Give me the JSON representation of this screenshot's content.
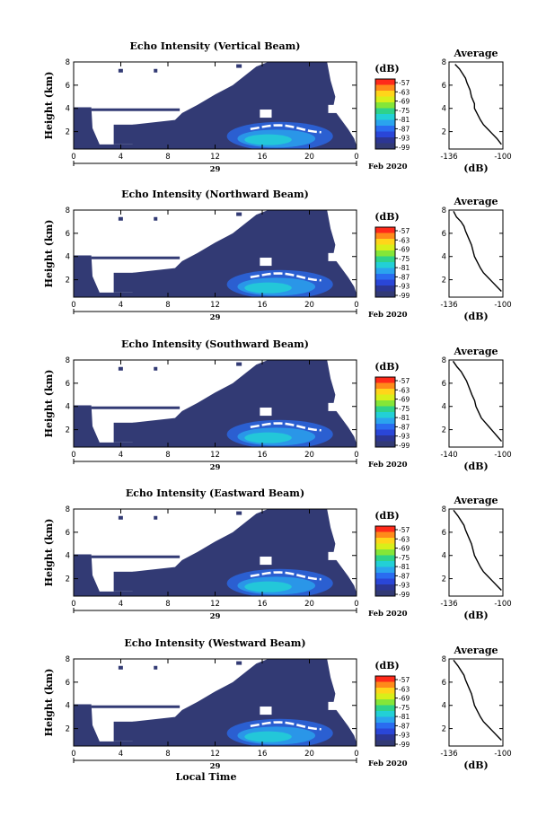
{
  "chart_data": [
    {
      "type": "heatmap",
      "title": "Echo Intensity (Vertical Beam)",
      "ylabel": "Height (km)",
      "y_ticks": [
        "2",
        "4",
        "6",
        "8"
      ],
      "ylim": [
        0.5,
        8
      ],
      "x_ticks": [
        "0",
        "4",
        "8",
        "12",
        "16",
        "20",
        "0"
      ],
      "xlim": [
        0,
        24
      ],
      "date_label": "29",
      "month_label": "Feb 2020",
      "colorbar": {
        "unit": "(dB)",
        "ticks": [
          "-57",
          "-63",
          "-69",
          "-75",
          "-81",
          "-87",
          "-93",
          "-99"
        ],
        "colors": [
          "#ff2a1a",
          "#ff8a1a",
          "#ffd51a",
          "#d8ef1a",
          "#84e638",
          "#2ed28a",
          "#22d0d6",
          "#2aa4ee",
          "#2a6cf0",
          "#2a46d8",
          "#2c3694",
          "#323a74"
        ]
      },
      "profile": {
        "title": "Average",
        "xlabel": "(dB)",
        "x_ticks": [
          "-136",
          "-100"
        ],
        "xlim": [
          -136,
          -100
        ],
        "y_ticks": [
          "2",
          "4",
          "6",
          "8"
        ],
        "ylim": [
          0.5,
          8
        ],
        "points": [
          [
            -132,
            7.8
          ],
          [
            -129,
            7.4
          ],
          [
            -127,
            7.0
          ],
          [
            -125,
            6.6
          ],
          [
            -124,
            6.2
          ],
          [
            -122,
            5.6
          ],
          [
            -121,
            5.0
          ],
          [
            -119,
            4.4
          ],
          [
            -119,
            4.0
          ],
          [
            -117,
            3.5
          ],
          [
            -115,
            3.0
          ],
          [
            -113,
            2.6
          ],
          [
            -110,
            2.2
          ],
          [
            -107,
            1.8
          ],
          [
            -104,
            1.4
          ],
          [
            -101,
            0.9
          ]
        ]
      }
    },
    {
      "type": "heatmap",
      "title": "Echo Intensity (Northward Beam)",
      "ylabel": "Height (km)",
      "y_ticks": [
        "2",
        "4",
        "6",
        "8"
      ],
      "ylim": [
        0.5,
        8
      ],
      "x_ticks": [
        "0",
        "4",
        "8",
        "12",
        "16",
        "20",
        "0"
      ],
      "xlim": [
        0,
        24
      ],
      "date_label": "29",
      "month_label": "Feb 2020",
      "colorbar": {
        "unit": "(dB)",
        "ticks": [
          "-57",
          "-63",
          "-69",
          "-75",
          "-81",
          "-87",
          "-93",
          "-99"
        ],
        "colors": [
          "#ff2a1a",
          "#ff8a1a",
          "#ffd51a",
          "#d8ef1a",
          "#84e638",
          "#2ed28a",
          "#22d0d6",
          "#2aa4ee",
          "#2a6cf0",
          "#2a46d8",
          "#2c3694",
          "#323a74"
        ]
      },
      "profile": {
        "title": "Average",
        "xlabel": "(dB)",
        "x_ticks": [
          "-136",
          "-100"
        ],
        "xlim": [
          -136,
          -100
        ],
        "y_ticks": [
          "2",
          "4",
          "6",
          "8"
        ],
        "ylim": [
          0.5,
          8
        ],
        "points": [
          [
            -133,
            7.9
          ],
          [
            -131,
            7.4
          ],
          [
            -128,
            7.0
          ],
          [
            -126,
            6.6
          ],
          [
            -125,
            6.2
          ],
          [
            -123,
            5.6
          ],
          [
            -121,
            5.0
          ],
          [
            -120,
            4.5
          ],
          [
            -119,
            4.0
          ],
          [
            -117,
            3.5
          ],
          [
            -115,
            3.0
          ],
          [
            -113,
            2.6
          ],
          [
            -110,
            2.2
          ],
          [
            -107,
            1.8
          ],
          [
            -104,
            1.4
          ],
          [
            -101,
            1.0
          ]
        ]
      }
    },
    {
      "type": "heatmap",
      "title": "Echo Intensity (Southward Beam)",
      "ylabel": "Height (km)",
      "y_ticks": [
        "2",
        "4",
        "6",
        "8"
      ],
      "ylim": [
        0.5,
        8
      ],
      "x_ticks": [
        "0",
        "4",
        "8",
        "12",
        "16",
        "20",
        "0"
      ],
      "xlim": [
        0,
        24
      ],
      "date_label": "29",
      "month_label": "Feb 2020",
      "colorbar": {
        "unit": "(dB)",
        "ticks": [
          "-57",
          "-63",
          "-69",
          "-75",
          "-81",
          "-87",
          "-93",
          "-99"
        ],
        "colors": [
          "#ff2a1a",
          "#ff8a1a",
          "#ffd51a",
          "#d8ef1a",
          "#84e638",
          "#2ed28a",
          "#22d0d6",
          "#2aa4ee",
          "#2a6cf0",
          "#2a46d8",
          "#2c3694",
          "#323a74"
        ]
      },
      "profile": {
        "title": "Average",
        "xlabel": "(dB)",
        "x_ticks": [
          "-140",
          "-100"
        ],
        "xlim": [
          -140,
          -100
        ],
        "y_ticks": [
          "2",
          "4",
          "6",
          "8"
        ],
        "ylim": [
          0.5,
          8
        ],
        "points": [
          [
            -137,
            7.9
          ],
          [
            -134,
            7.4
          ],
          [
            -131,
            7.0
          ],
          [
            -129,
            6.6
          ],
          [
            -127,
            6.2
          ],
          [
            -125,
            5.6
          ],
          [
            -123,
            5.0
          ],
          [
            -121,
            4.5
          ],
          [
            -120,
            4.0
          ],
          [
            -118,
            3.5
          ],
          [
            -116,
            3.0
          ],
          [
            -113,
            2.6
          ],
          [
            -110,
            2.2
          ],
          [
            -107,
            1.8
          ],
          [
            -104,
            1.4
          ],
          [
            -101,
            1.0
          ]
        ]
      }
    },
    {
      "type": "heatmap",
      "title": "Echo Intensity (Eastward Beam)",
      "ylabel": "Height (km)",
      "y_ticks": [
        "2",
        "4",
        "6",
        "8"
      ],
      "ylim": [
        0.5,
        8
      ],
      "x_ticks": [
        "0",
        "4",
        "8",
        "12",
        "16",
        "20",
        "0"
      ],
      "xlim": [
        0,
        24
      ],
      "date_label": "29",
      "month_label": "Feb 2020",
      "colorbar": {
        "unit": "(dB)",
        "ticks": [
          "-57",
          "-63",
          "-69",
          "-75",
          "-81",
          "-87",
          "-93",
          "-99"
        ],
        "colors": [
          "#ff2a1a",
          "#ff8a1a",
          "#ffd51a",
          "#d8ef1a",
          "#84e638",
          "#2ed28a",
          "#22d0d6",
          "#2aa4ee",
          "#2a6cf0",
          "#2a46d8",
          "#2c3694",
          "#323a74"
        ]
      },
      "profile": {
        "title": "Average",
        "xlabel": "(dB)",
        "x_ticks": [
          "-136",
          "-100"
        ],
        "xlim": [
          -136,
          -100
        ],
        "y_ticks": [
          "2",
          "4",
          "6",
          "8"
        ],
        "ylim": [
          0.5,
          8
        ],
        "points": [
          [
            -133,
            7.9
          ],
          [
            -130,
            7.4
          ],
          [
            -128,
            7.0
          ],
          [
            -126,
            6.6
          ],
          [
            -125,
            6.2
          ],
          [
            -123,
            5.6
          ],
          [
            -121,
            5.0
          ],
          [
            -120,
            4.5
          ],
          [
            -119,
            4.0
          ],
          [
            -117,
            3.5
          ],
          [
            -115,
            3.0
          ],
          [
            -113,
            2.6
          ],
          [
            -110,
            2.2
          ],
          [
            -107,
            1.8
          ],
          [
            -104,
            1.4
          ],
          [
            -101,
            1.0
          ]
        ]
      }
    },
    {
      "type": "heatmap",
      "title": "Echo Intensity (Westward Beam)",
      "ylabel": "Height (km)",
      "y_ticks": [
        "2",
        "4",
        "6",
        "8"
      ],
      "ylim": [
        0.5,
        8
      ],
      "x_ticks": [
        "0",
        "4",
        "8",
        "12",
        "16",
        "20",
        "0"
      ],
      "xlim": [
        0,
        24
      ],
      "date_label": "29",
      "month_label": "Feb 2020",
      "xlabel": "Local Time",
      "colorbar": {
        "unit": "(dB)",
        "ticks": [
          "-57",
          "-63",
          "-69",
          "-75",
          "-81",
          "-87",
          "-93",
          "-99"
        ],
        "colors": [
          "#ff2a1a",
          "#ff8a1a",
          "#ffd51a",
          "#d8ef1a",
          "#84e638",
          "#2ed28a",
          "#22d0d6",
          "#2aa4ee",
          "#2a6cf0",
          "#2a46d8",
          "#2c3694",
          "#323a74"
        ]
      },
      "profile": {
        "title": "Average",
        "xlabel": "(dB)",
        "x_ticks": [
          "-136",
          "-100"
        ],
        "xlim": [
          -136,
          -100
        ],
        "y_ticks": [
          "2",
          "4",
          "6",
          "8"
        ],
        "ylim": [
          0.5,
          8
        ],
        "points": [
          [
            -133,
            7.9
          ],
          [
            -130,
            7.4
          ],
          [
            -128,
            7.0
          ],
          [
            -126,
            6.6
          ],
          [
            -125,
            6.2
          ],
          [
            -123,
            5.6
          ],
          [
            -121,
            5.0
          ],
          [
            -120,
            4.5
          ],
          [
            -119,
            4.0
          ],
          [
            -117,
            3.5
          ],
          [
            -115,
            3.0
          ],
          [
            -113,
            2.6
          ],
          [
            -110,
            2.2
          ],
          [
            -107,
            1.8
          ],
          [
            -104,
            1.4
          ],
          [
            -101,
            1.0
          ]
        ]
      }
    }
  ]
}
